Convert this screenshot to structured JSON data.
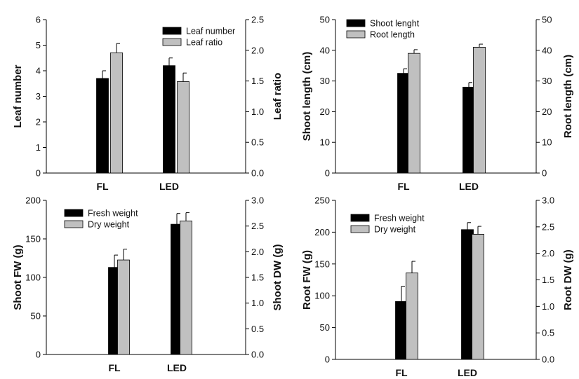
{
  "colors": {
    "primary": "#000000",
    "secondary": "#c0c0c0",
    "error_bar": "#000000"
  },
  "chart_data": [
    {
      "type": "bar",
      "categories": [
        "FL",
        "LED"
      ],
      "ylabel": "Leaf number",
      "y2label": "Leaf ratio",
      "ylim": [
        0,
        6
      ],
      "y2lim": [
        0,
        2.5
      ],
      "yticks": [
        "0",
        "1",
        "2",
        "3",
        "4",
        "5",
        "6"
      ],
      "y2ticks": [
        "0.0",
        "0.5",
        "1.0",
        "1.5",
        "2.0",
        "2.5"
      ],
      "legend_position": "top-right",
      "series": [
        {
          "name": "Leaf number",
          "axis": "left",
          "color": "#000000",
          "values": [
            3.7,
            4.2
          ],
          "errors": [
            0.3,
            0.3
          ]
        },
        {
          "name": "Leaf ratio",
          "axis": "right",
          "color": "#c0c0c0",
          "values": [
            1.96,
            1.49
          ],
          "errors": [
            0.15,
            0.14
          ]
        }
      ]
    },
    {
      "type": "bar",
      "categories": [
        "FL",
        "LED"
      ],
      "ylabel": "Shoot length (cm)",
      "y2label": "Root length (cm)",
      "ylim": [
        0,
        50
      ],
      "y2lim": [
        0,
        50
      ],
      "yticks": [
        "0",
        "10",
        "20",
        "30",
        "40",
        "50"
      ],
      "y2ticks": [
        "0",
        "10",
        "20",
        "30",
        "40",
        "50"
      ],
      "legend_position": "top-left",
      "series": [
        {
          "name": "Shoot lenght",
          "axis": "left",
          "color": "#000000",
          "values": [
            32.5,
            28
          ],
          "errors": [
            1.5,
            1.5
          ]
        },
        {
          "name": "Root length",
          "axis": "right",
          "color": "#c0c0c0",
          "values": [
            39,
            41
          ],
          "errors": [
            1.2,
            1.0
          ]
        }
      ]
    },
    {
      "type": "bar",
      "categories": [
        "FL",
        "LED"
      ],
      "ylabel": "Shoot FW (g)",
      "y2label": "Shoot DW (g)",
      "ylim": [
        0,
        200
      ],
      "y2lim": [
        0,
        3
      ],
      "yticks": [
        "0",
        "50",
        "100",
        "150",
        "200"
      ],
      "y2ticks": [
        "0.0",
        "0.5",
        "1.0",
        "1.5",
        "2.0",
        "2.5",
        "3.0"
      ],
      "legend_position": "top-left",
      "series": [
        {
          "name": "Fresh weight",
          "axis": "left",
          "color": "#000000",
          "values": [
            113,
            169
          ],
          "errors": [
            16,
            14
          ]
        },
        {
          "name": "Dry weight",
          "axis": "right",
          "color": "#c0c0c0",
          "values": [
            1.84,
            2.6
          ],
          "errors": [
            0.21,
            0.16
          ]
        }
      ]
    },
    {
      "type": "bar",
      "categories": [
        "FL",
        "LED"
      ],
      "ylabel": "Root FW (g)",
      "y2label": "Root DW (g)",
      "ylim": [
        0,
        250
      ],
      "y2lim": [
        0,
        3
      ],
      "yticks": [
        "0",
        "50",
        "100",
        "150",
        "200",
        "250"
      ],
      "y2ticks": [
        "0.0",
        "0.5",
        "1.0",
        "1.5",
        "2.0",
        "2.5",
        "3.0"
      ],
      "legend_position": "top-left",
      "series": [
        {
          "name": "Fresh weight",
          "axis": "left",
          "color": "#000000",
          "values": [
            91,
            204
          ],
          "errors": [
            24,
            11
          ]
        },
        {
          "name": "Dry weight",
          "axis": "right",
          "color": "#c0c0c0",
          "values": [
            1.63,
            2.36
          ],
          "errors": [
            0.22,
            0.15
          ]
        }
      ]
    }
  ]
}
